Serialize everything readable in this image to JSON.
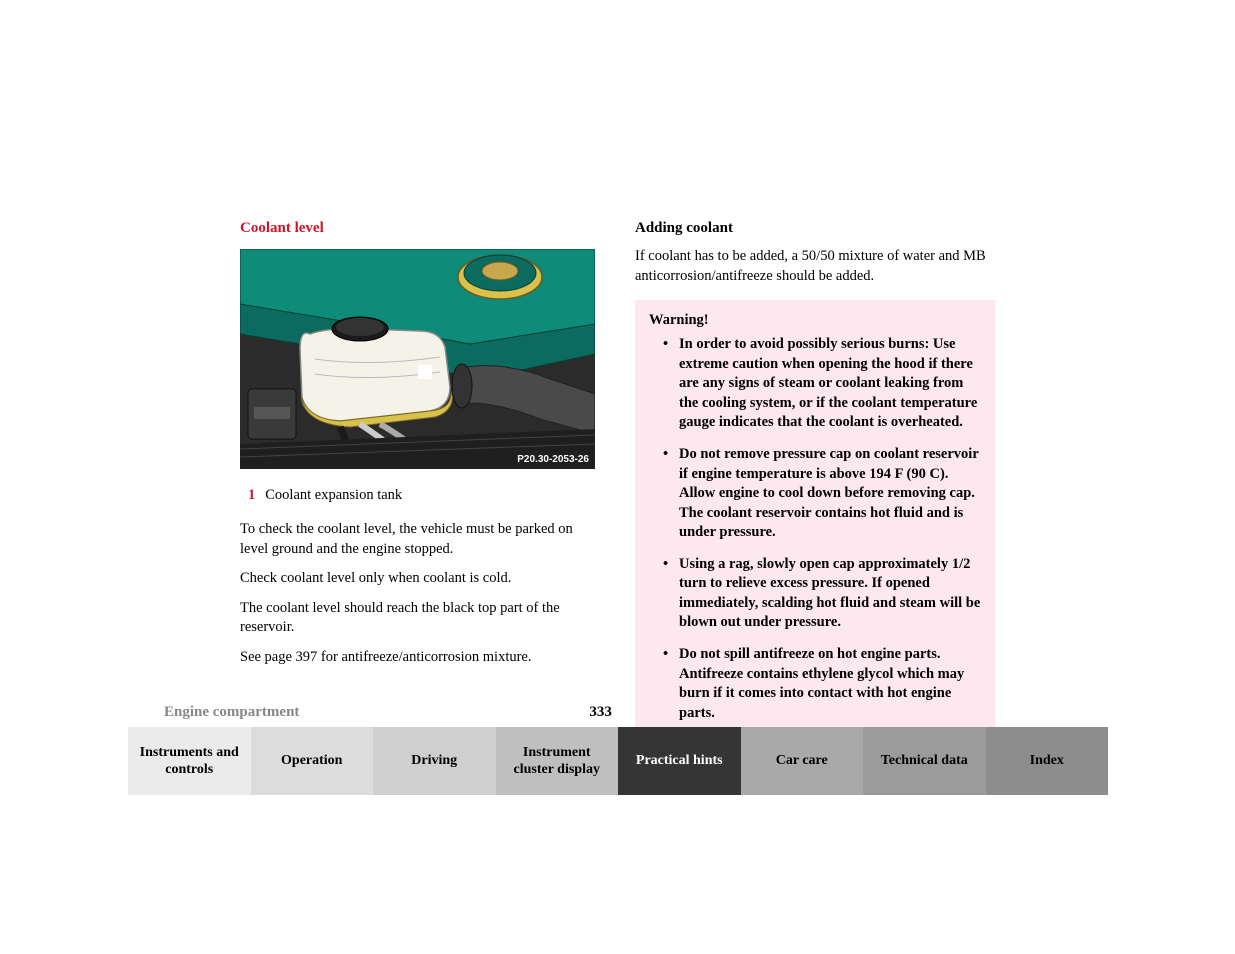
{
  "left": {
    "heading": "Coolant level",
    "image_label": "P20.30-2053-26",
    "callout_num": "1",
    "callout_text": "Coolant expansion tank",
    "paragraphs": [
      "To check the coolant level, the vehicle must be parked on level ground and the engine stopped.",
      "Check coolant level only when coolant is cold.",
      "The coolant level should reach the black top part of the reservoir.",
      "See page 397 for antifreeze/anticorrosion mixture."
    ]
  },
  "right": {
    "heading": "Adding coolant",
    "intro": "If coolant has to be added, a 50/50 mixture of water and MB anticorrosion/antifreeze should be added.",
    "warning_title": "Warning!",
    "warning_items": [
      "In order to avoid possibly serious burns: Use extreme caution when opening the hood if there are any signs of steam or coolant leaking from the cooling system, or if the coolant temperature gauge indicates that the coolant is overheated.",
      "Do not remove pressure cap on coolant reservoir if engine temperature is above 194 F (90 C). Allow engine to cool down before removing cap. The coolant reservoir contains hot fluid and is under pressure.",
      "Using a rag, slowly open cap approximately 1/2 turn to relieve excess pressure. If opened immediately, scalding hot fluid and steam will be blown out under pressure.",
      "Do not spill antifreeze on hot engine parts. Antifreeze contains ethylene glycol which may burn if it comes into contact with hot engine parts."
    ]
  },
  "footer": {
    "section_name": "Engine compartment",
    "page_number": "333",
    "tabs": [
      {
        "label": "Instruments and controls",
        "bg": "#ebebeb",
        "active": false
      },
      {
        "label": "Operation",
        "bg": "#dcdcdc",
        "active": false
      },
      {
        "label": "Driving",
        "bg": "#cfcfcf",
        "active": false
      },
      {
        "label": "Instrument cluster display",
        "bg": "#bfbfbf",
        "active": false
      },
      {
        "label": "Practical hints",
        "bg": "#353535",
        "active": true
      },
      {
        "label": "Car care",
        "bg": "#a9a9a9",
        "active": false
      },
      {
        "label": "Technical data",
        "bg": "#9b9b9b",
        "active": false
      },
      {
        "label": "Index",
        "bg": "#8d8d8d",
        "active": false
      }
    ]
  },
  "image_colors": {
    "engine_green": "#0f8b7a",
    "tank_white": "#f5f2e8",
    "tank_yellow": "#d8c24b",
    "dark": "#272727",
    "hose": "#4a4a4a",
    "cap_gold": "#c8a84f"
  }
}
